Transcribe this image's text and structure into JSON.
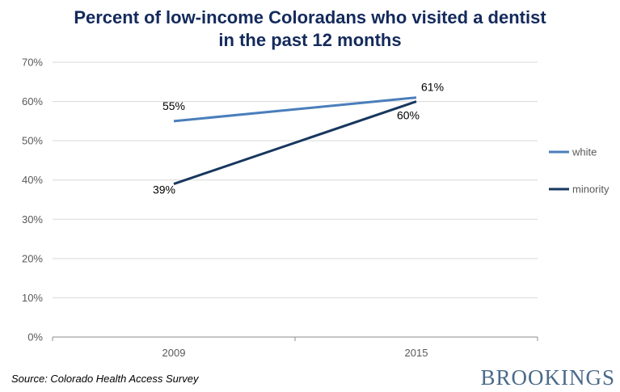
{
  "title_line1": "Percent of low-income Coloradans who visited a dentist",
  "title_line2": "in the past 12 months",
  "source": "Source: Colorado Health Access Survey",
  "logo_text": "BROOKINGS",
  "chart_data": {
    "type": "line",
    "categories": [
      "2009",
      "2015"
    ],
    "ylim": [
      0,
      70
    ],
    "yticks": [
      "0%",
      "10%",
      "20%",
      "30%",
      "40%",
      "50%",
      "60%",
      "70%"
    ],
    "grid": true,
    "legend_position": "right",
    "series": [
      {
        "name": "white",
        "values": [
          55,
          61
        ],
        "labels": [
          "55%",
          "61%"
        ],
        "color": "#4a7ebb"
      },
      {
        "name": "minority",
        "values": [
          39,
          60
        ],
        "labels": [
          "39%",
          "60%"
        ],
        "color": "#17375e"
      }
    ]
  }
}
